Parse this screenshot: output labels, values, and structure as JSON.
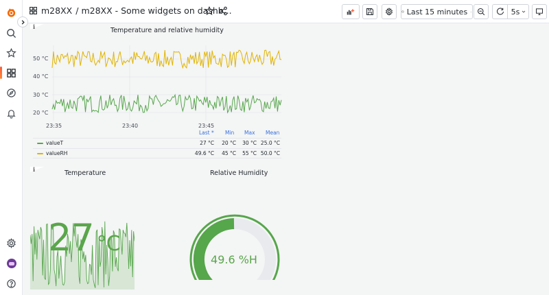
{
  "breadcrumb": {
    "folder": "m28XX",
    "separator": "/",
    "title": "m28XX - Some widgets on dashb..."
  },
  "toolbar": {
    "time_range": "Last 15 minutes",
    "refresh_interval": "5s"
  },
  "panels": {
    "timeseries": {
      "title": "Temperature and relative humidity",
      "info_marker": "i",
      "y_ticks": [
        "50 °C",
        "40 °C",
        "30 °C",
        "20 °C"
      ],
      "x_ticks": [
        "23:35",
        "23:40",
        "23:45"
      ],
      "legend": {
        "headers": [
          "Last *",
          "Min",
          "Max",
          "Mean"
        ],
        "rows": [
          {
            "name": "valueT",
            "color": "#56a64b",
            "last": "27 °C",
            "min": "20 °C",
            "max": "30 °C",
            "mean": "25.0 °C"
          },
          {
            "name": "valueRH",
            "color": "#e0b400",
            "last": "49.6 °C",
            "min": "45 °C",
            "max": "55 °C",
            "mean": "50.0 °C"
          }
        ]
      }
    },
    "temperature": {
      "title": "Temperature",
      "value": "27",
      "unit": "°C",
      "info_marker": "i"
    },
    "humidity": {
      "title": "Relative Humidity",
      "value": "49.6 %H",
      "fraction": 0.496,
      "min": 0,
      "max": 100
    }
  },
  "chart_data": {
    "type": "line",
    "title": "Temperature and relative humidity",
    "x": [
      "23:35",
      "23:40",
      "23:45"
    ],
    "ylim": [
      20,
      55
    ],
    "series": [
      {
        "name": "valueT",
        "last": 27,
        "min": 20,
        "max": 30,
        "mean": 25.0
      },
      {
        "name": "valueRH",
        "last": 49.6,
        "min": 45,
        "max": 55,
        "mean": 50.0
      }
    ]
  },
  "colors": {
    "green": "#56a64b",
    "yellow": "#e0b400",
    "accent": "#f55f3e",
    "legend_header": "#3871dc"
  }
}
